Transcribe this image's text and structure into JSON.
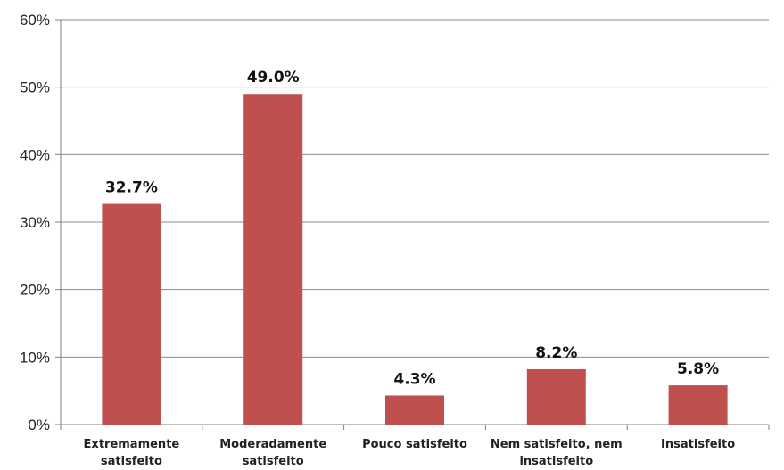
{
  "chart_data": {
    "type": "bar",
    "categories": [
      [
        "Extremamente",
        "satisfeito"
      ],
      [
        "Moderadamente",
        "satisfeito"
      ],
      [
        "Pouco satisfeito"
      ],
      [
        "Nem satisfeito, nem",
        "insatisfeito"
      ],
      [
        "Insatisfeito"
      ]
    ],
    "values": [
      32.7,
      49.0,
      4.3,
      8.2,
      5.8
    ],
    "data_labels": [
      "32.7%",
      "49.0%",
      "4.3%",
      "8.2%",
      "5.8%"
    ],
    "ylim": [
      0,
      60
    ],
    "yticks": [
      0,
      10,
      20,
      30,
      40,
      50,
      60
    ],
    "ytick_labels": [
      "0%",
      "10%",
      "20%",
      "30%",
      "40%",
      "50%",
      "60%"
    ],
    "title": "",
    "xlabel": "",
    "ylabel": "",
    "grid": true,
    "colors": {
      "bar": "#c0504d",
      "grid": "#8c8c8c",
      "axis": "#7f7f7f"
    }
  }
}
